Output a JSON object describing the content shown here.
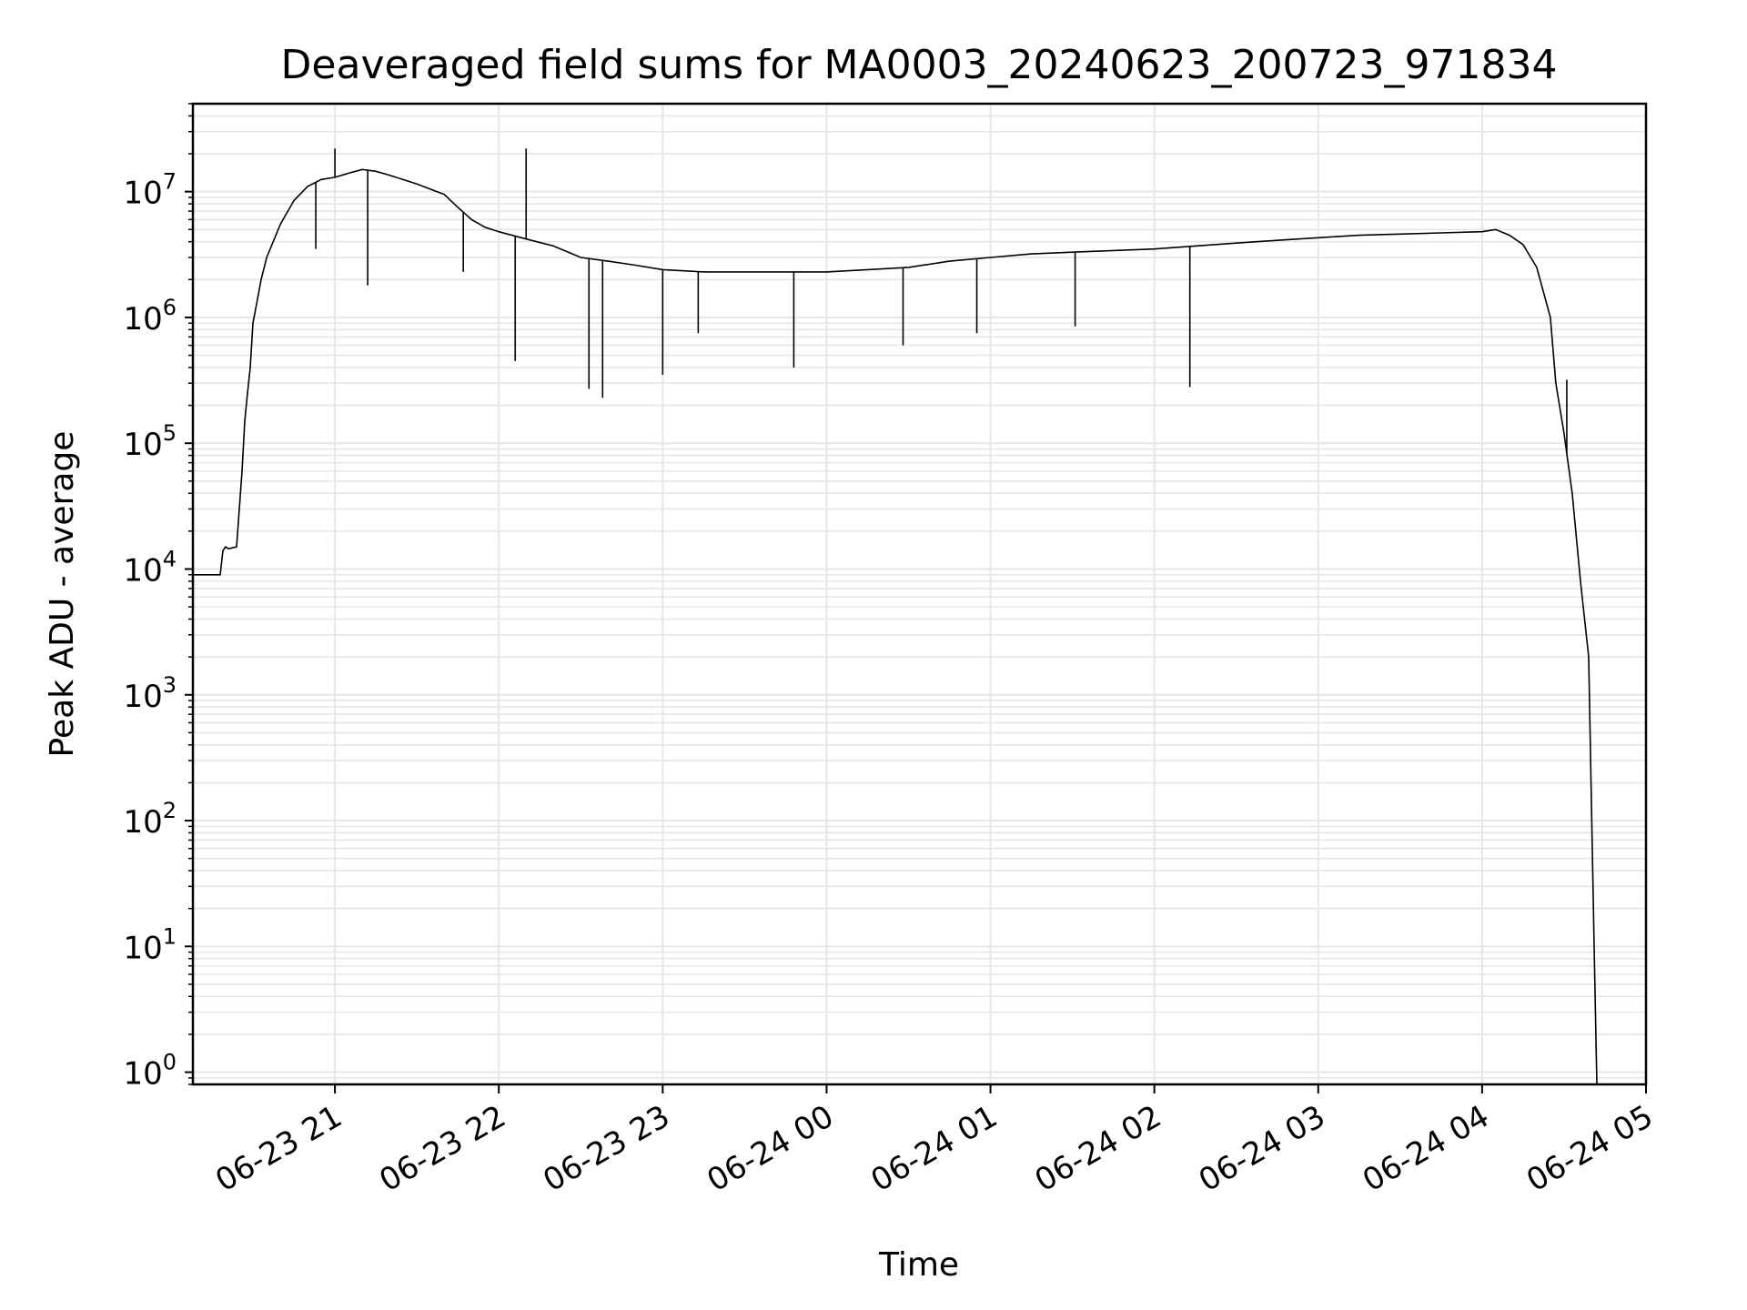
{
  "chart_data": {
    "type": "line",
    "title": "Deaveraged field sums for MA0003_20240623_200723_971834",
    "xlabel": "Time",
    "ylabel": "Peak ADU - average",
    "y_scale": "log",
    "ylim": [
      0.8,
      50000000
    ],
    "xlim": [
      "2024-06-23 20:08",
      "2024-06-24 05:00"
    ],
    "grid": true,
    "x_ticks": [
      {
        "label": "06-23 21",
        "t": "2024-06-23 21:00"
      },
      {
        "label": "06-23 22",
        "t": "2024-06-23 22:00"
      },
      {
        "label": "06-23 23",
        "t": "2024-06-23 23:00"
      },
      {
        "label": "06-24 00",
        "t": "2024-06-24 00:00"
      },
      {
        "label": "06-24 01",
        "t": "2024-06-24 01:00"
      },
      {
        "label": "06-24 02",
        "t": "2024-06-24 02:00"
      },
      {
        "label": "06-24 03",
        "t": "2024-06-24 03:00"
      },
      {
        "label": "06-24 04",
        "t": "2024-06-24 04:00"
      },
      {
        "label": "06-24 05",
        "t": "2024-06-24 05:00"
      }
    ],
    "y_ticks": [
      {
        "base": "10",
        "exp": "0",
        "value": 1
      },
      {
        "base": "10",
        "exp": "1",
        "value": 10
      },
      {
        "base": "10",
        "exp": "2",
        "value": 100
      },
      {
        "base": "10",
        "exp": "3",
        "value": 1000
      },
      {
        "base": "10",
        "exp": "4",
        "value": 10000
      },
      {
        "base": "10",
        "exp": "5",
        "value": 100000
      },
      {
        "base": "10",
        "exp": "6",
        "value": 1000000
      },
      {
        "base": "10",
        "exp": "7",
        "value": 10000000
      }
    ],
    "series": [
      {
        "color": "#000000",
        "x": [
          "2024-06-23 20:08",
          "2024-06-23 20:18",
          "2024-06-23 20:19",
          "2024-06-23 20:20",
          "2024-06-23 20:21",
          "2024-06-23 20:24",
          "2024-06-23 20:26",
          "2024-06-23 20:27",
          "2024-06-23 20:28",
          "2024-06-23 20:29",
          "2024-06-23 20:30",
          "2024-06-23 20:33",
          "2024-06-23 20:35",
          "2024-06-23 20:40",
          "2024-06-23 20:45",
          "2024-06-23 20:50",
          "2024-06-23 20:55",
          "2024-06-23 21:00",
          "2024-06-23 21:05",
          "2024-06-23 21:10",
          "2024-06-23 21:15",
          "2024-06-23 21:20",
          "2024-06-23 21:30",
          "2024-06-23 21:40",
          "2024-06-23 21:45",
          "2024-06-23 21:50",
          "2024-06-23 21:55",
          "2024-06-23 22:00",
          "2024-06-23 22:10",
          "2024-06-23 22:20",
          "2024-06-23 22:30",
          "2024-06-23 22:40",
          "2024-06-23 22:50",
          "2024-06-23 23:00",
          "2024-06-23 23:15",
          "2024-06-23 23:30",
          "2024-06-23 23:45",
          "2024-06-24 00:00",
          "2024-06-24 00:15",
          "2024-06-24 00:30",
          "2024-06-24 00:45",
          "2024-06-24 01:00",
          "2024-06-24 01:15",
          "2024-06-24 01:30",
          "2024-06-24 01:45",
          "2024-06-24 02:00",
          "2024-06-24 02:15",
          "2024-06-24 02:30",
          "2024-06-24 02:45",
          "2024-06-24 03:00",
          "2024-06-24 03:15",
          "2024-06-24 03:30",
          "2024-06-24 03:45",
          "2024-06-24 04:00",
          "2024-06-24 04:05",
          "2024-06-24 04:10",
          "2024-06-24 04:15",
          "2024-06-24 04:20",
          "2024-06-24 04:25",
          "2024-06-24 04:27",
          "2024-06-24 04:30",
          "2024-06-24 04:33",
          "2024-06-24 04:36",
          "2024-06-24 04:39",
          "2024-06-24 04:41",
          "2024-06-24 04:42"
        ],
        "y": [
          9000,
          9000,
          14000,
          15000,
          14500,
          15000,
          60000,
          150000,
          250000,
          400000,
          900000,
          2000000,
          3000000,
          5500000,
          8500000,
          11000000,
          12500000,
          13000000,
          14000000,
          15000000,
          14500000,
          13500000,
          11500000,
          9500000,
          7500000,
          6000000,
          5200000,
          4800000,
          4200000,
          3700000,
          3000000,
          2800000,
          2600000,
          2400000,
          2300000,
          2300000,
          2300000,
          2300000,
          2400000,
          2500000,
          2800000,
          3000000,
          3200000,
          3300000,
          3400000,
          3500000,
          3700000,
          3900000,
          4100000,
          4300000,
          4500000,
          4600000,
          4700000,
          4800000,
          5000000,
          4500000,
          3800000,
          2500000,
          1000000,
          300000,
          120000,
          40000,
          8000,
          2000,
          10,
          0.8
        ]
      }
    ],
    "spikes": [
      {
        "x": "2024-06-23 20:53",
        "y": 3500000
      },
      {
        "x": "2024-06-23 21:00",
        "y": 22000000
      },
      {
        "x": "2024-06-23 21:12",
        "y": 1800000
      },
      {
        "x": "2024-06-23 21:47",
        "y": 2300000
      },
      {
        "x": "2024-06-23 22:10",
        "y": 22000000
      },
      {
        "x": "2024-06-23 22:06",
        "y": 450000
      },
      {
        "x": "2024-06-23 22:33",
        "y": 270000
      },
      {
        "x": "2024-06-23 22:38",
        "y": 230000
      },
      {
        "x": "2024-06-23 23:00",
        "y": 350000
      },
      {
        "x": "2024-06-23 23:13",
        "y": 750000
      },
      {
        "x": "2024-06-23 23:48",
        "y": 400000
      },
      {
        "x": "2024-06-24 00:28",
        "y": 600000
      },
      {
        "x": "2024-06-24 00:55",
        "y": 750000
      },
      {
        "x": "2024-06-24 01:31",
        "y": 850000
      },
      {
        "x": "2024-06-24 02:13",
        "y": 280000
      },
      {
        "x": "2024-06-24 04:31",
        "y": 320000
      }
    ]
  }
}
